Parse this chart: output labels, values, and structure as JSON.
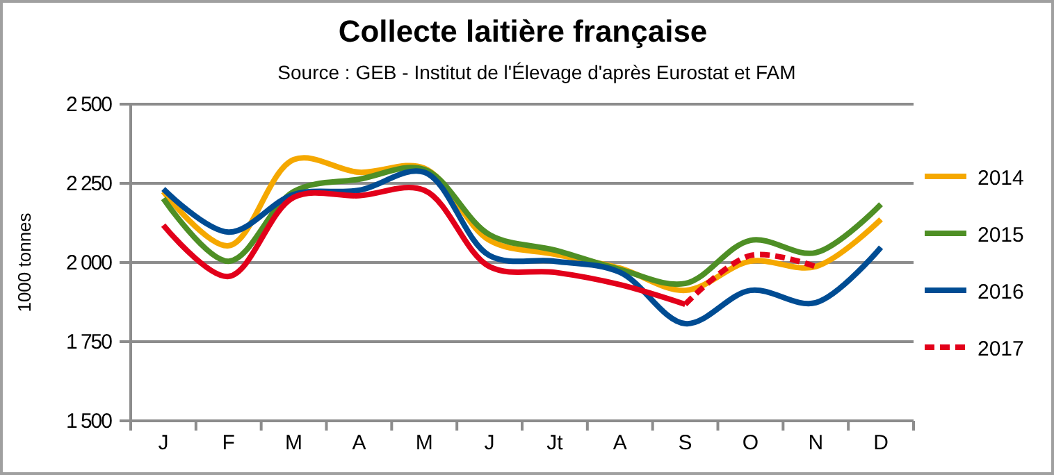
{
  "chart_data": {
    "type": "line",
    "title": "Collecte laitière française",
    "subtitle": "Source : GEB - Institut de l'Élevage d'après Eurostat et FAM",
    "ylabel": "1000 tonnes",
    "categories": [
      "J",
      "F",
      "M",
      "A",
      "M",
      "J",
      "Jt",
      "A",
      "S",
      "O",
      "N",
      "D"
    ],
    "series": [
      {
        "name": "2014",
        "color": "#f5a800",
        "values": [
          2224,
          2053,
          2325,
          2285,
          2298,
          2070,
          2026,
          1982,
          1912,
          2004,
          1987,
          2136
        ]
      },
      {
        "name": "2015",
        "color": "#4e8f25",
        "values": [
          2202,
          2004,
          2224,
          2263,
          2294,
          2088,
          2039,
          1978,
          1934,
          2070,
          2031,
          2184
        ]
      },
      {
        "name": "2016",
        "color": "#004c93",
        "values": [
          2232,
          2096,
          2215,
          2228,
          2285,
          2022,
          2004,
          1969,
          1807,
          1912,
          1873,
          2048
        ]
      },
      {
        "color": "#e2001a",
        "values": [
          2118,
          1956,
          2206,
          2211,
          2228,
          1987,
          1969,
          1930,
          1868,
          null,
          null,
          null
        ]
      },
      {
        "name": "2017",
        "color": "#e2001a",
        "line_style": "dashed",
        "values": [
          null,
          null,
          null,
          null,
          null,
          null,
          null,
          null,
          1868,
          2022,
          1987,
          null
        ]
      }
    ],
    "ylim": [
      1500,
      2500
    ],
    "yticks": [
      {
        "value": 1500,
        "label": "1 500"
      },
      {
        "value": 1750,
        "label": "1 750"
      },
      {
        "value": 2000,
        "label": "2 000"
      },
      {
        "value": 2250,
        "label": "2 250"
      },
      {
        "value": 2500,
        "label": "2 500"
      }
    ],
    "grid": "y",
    "legend": "right",
    "marker": "none"
  }
}
